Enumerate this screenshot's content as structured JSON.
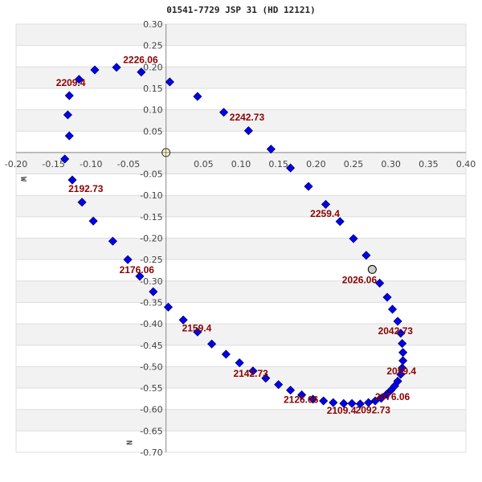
{
  "chart_data": {
    "type": "scatter",
    "title": "01541-7729 JSP  31 (HD 12121)",
    "xlabel": "",
    "ylabel": "",
    "axis_labels": {
      "west": "W",
      "north": "N"
    },
    "xlim": [
      -0.2,
      0.4
    ],
    "ylim": [
      -0.7,
      0.3
    ],
    "x_ticks": [
      "-0.20",
      "-0.15",
      "-0.10",
      "-0.05",
      "0.05",
      "0.10",
      "0.15",
      "0.20",
      "0.25",
      "0.30",
      "0.35",
      "0.40"
    ],
    "y_ticks": [
      "0.30",
      "0.25",
      "0.20",
      "0.15",
      "0.10",
      "0.05",
      "-0.05",
      "-0.10",
      "-0.15",
      "-0.20",
      "-0.25",
      "-0.30",
      "-0.35",
      "-0.40",
      "-0.45",
      "-0.50",
      "-0.55",
      "-0.60",
      "-0.65",
      "-0.70"
    ],
    "grid": true,
    "colors": {
      "point": "#0000ee",
      "label": "#8b0000",
      "band": "#f2f2f2",
      "grid": "#dddddd",
      "axis": "#888888",
      "origin": "#fffacd",
      "current": "#cccccc"
    },
    "origin_marker": {
      "x": 0.0,
      "y": 0.0
    },
    "current_marker": {
      "x": 0.275,
      "y": -0.273,
      "label": "2026.06"
    },
    "series": [
      {
        "name": "orbit",
        "points": [
          [
            0.285,
            -0.305
          ],
          [
            0.295,
            -0.338
          ],
          [
            0.302,
            -0.366
          ],
          [
            0.309,
            -0.394
          ],
          [
            0.313,
            -0.422
          ],
          [
            0.315,
            -0.446
          ],
          [
            0.316,
            -0.467
          ],
          [
            0.316,
            -0.486
          ],
          [
            0.315,
            -0.503
          ],
          [
            0.313,
            -0.518
          ],
          [
            0.309,
            -0.534
          ],
          [
            0.305,
            -0.545
          ],
          [
            0.3,
            -0.555
          ],
          [
            0.294,
            -0.565
          ],
          [
            0.287,
            -0.574
          ],
          [
            0.279,
            -0.58
          ],
          [
            0.27,
            -0.584
          ],
          [
            0.259,
            -0.587
          ],
          [
            0.248,
            -0.586
          ],
          [
            0.237,
            -0.586
          ],
          [
            0.223,
            -0.584
          ],
          [
            0.21,
            -0.58
          ],
          [
            0.196,
            -0.576
          ],
          [
            0.181,
            -0.566
          ],
          [
            0.166,
            -0.555
          ],
          [
            0.15,
            -0.542
          ],
          [
            0.133,
            -0.527
          ],
          [
            0.116,
            -0.51
          ],
          [
            0.098,
            -0.491
          ],
          [
            0.08,
            -0.471
          ],
          [
            0.061,
            -0.447
          ],
          [
            0.042,
            -0.419
          ],
          [
            0.023,
            -0.391
          ],
          [
            0.003,
            -0.361
          ],
          [
            -0.017,
            -0.325
          ],
          [
            -0.035,
            -0.289
          ],
          [
            -0.051,
            -0.25
          ],
          [
            -0.071,
            -0.207
          ],
          [
            -0.097,
            -0.16
          ],
          [
            -0.112,
            -0.116
          ],
          [
            -0.125,
            -0.064
          ],
          [
            -0.135,
            -0.015
          ],
          [
            -0.129,
            0.039
          ],
          [
            -0.131,
            0.088
          ],
          [
            -0.129,
            0.133
          ],
          [
            -0.116,
            0.171
          ],
          [
            -0.095,
            0.193
          ],
          [
            -0.066,
            0.199
          ],
          [
            -0.033,
            0.188
          ],
          [
            0.005,
            0.165
          ],
          [
            0.042,
            0.131
          ],
          [
            0.077,
            0.094
          ],
          [
            0.11,
            0.051
          ],
          [
            0.14,
            0.008
          ],
          [
            0.166,
            -0.036
          ],
          [
            0.19,
            -0.079
          ],
          [
            0.213,
            -0.121
          ],
          [
            0.232,
            -0.161
          ],
          [
            0.25,
            -0.201
          ],
          [
            0.267,
            -0.24
          ]
        ]
      }
    ],
    "annotations": [
      {
        "text": "2226.06",
        "x": -0.034,
        "y": 0.209
      },
      {
        "text": "2209.4",
        "x": -0.127,
        "y": 0.156
      },
      {
        "text": "2242.73",
        "x": 0.108,
        "y": 0.075
      },
      {
        "text": "2192.73",
        "x": -0.107,
        "y": -0.092
      },
      {
        "text": "2259.4",
        "x": 0.212,
        "y": -0.15
      },
      {
        "text": "2176.06",
        "x": -0.039,
        "y": -0.282
      },
      {
        "text": "2026.06",
        "x": 0.258,
        "y": -0.305
      },
      {
        "text": "2159.4",
        "x": 0.041,
        "y": -0.418
      },
      {
        "text": "2042.73",
        "x": 0.306,
        "y": -0.424
      },
      {
        "text": "2142.73",
        "x": 0.113,
        "y": -0.524
      },
      {
        "text": "2059.4",
        "x": 0.314,
        "y": -0.518
      },
      {
        "text": "2076.06",
        "x": 0.302,
        "y": -0.578
      },
      {
        "text": "2126.06",
        "x": 0.18,
        "y": -0.585
      },
      {
        "text": "2109.4",
        "x": 0.234,
        "y": -0.61
      },
      {
        "text": "2092.73",
        "x": 0.276,
        "y": -0.609
      }
    ]
  }
}
